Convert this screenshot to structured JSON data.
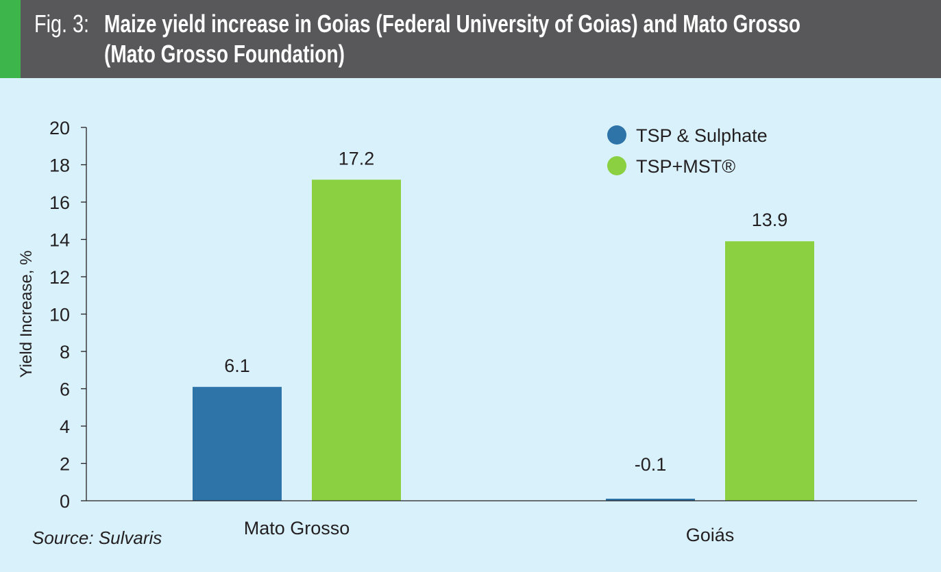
{
  "header": {
    "fig_label": "Fig. 3:",
    "title_line1": "Maize yield increase in Goias (Federal University of Goias) and Mato Grosso",
    "title_line2": "(Mato Grosso Foundation)"
  },
  "source": "Source: Sulvaris",
  "colors": {
    "header_bg": "#58585a",
    "accent": "#3db54a",
    "background": "#d8f1fb",
    "series1": "#2e74a8",
    "series2": "#8ad041"
  },
  "chart_data": {
    "type": "bar",
    "title": "Maize yield increase in Goias (Federal University of Goias) and Mato Grosso (Mato Grosso Foundation)",
    "xlabel": "",
    "ylabel": "Yield Increase, %",
    "ylim": [
      0,
      20
    ],
    "yticks": [
      "0",
      "2",
      "4",
      "6",
      "8",
      "10",
      "12",
      "14",
      "16",
      "18",
      "20"
    ],
    "categories": [
      "Mato Grosso",
      "Goiás"
    ],
    "series": [
      {
        "name": "TSP & Sulphate",
        "color": "#2e74a8",
        "values": [
          6.1,
          -0.1
        ],
        "labels": [
          "6.1",
          "-0.1"
        ]
      },
      {
        "name": "TSP+MST®",
        "color": "#8ad041",
        "values": [
          17.2,
          13.9
        ],
        "labels": [
          "17.2",
          "13.9"
        ]
      }
    ],
    "legend_position": "top-right",
    "grid": false
  }
}
